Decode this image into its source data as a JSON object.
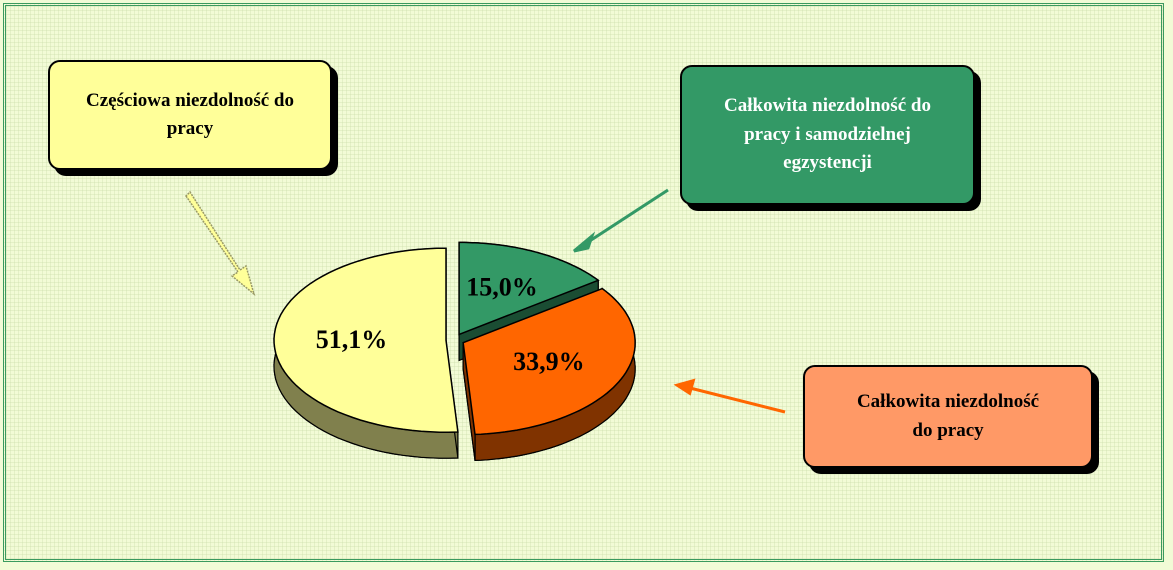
{
  "chart_data": {
    "type": "pie",
    "categories": [
      "Częściowa niezdolność do pracy",
      "Całkowita niezdolność do pracy i samodzielnej egzystencji",
      "Całkowita niezdolność do pracy"
    ],
    "values": [
      51.1,
      15.0,
      33.9
    ],
    "value_labels": [
      "51,1%",
      "15,0%",
      "33,9%"
    ],
    "colors": [
      "#ffff99",
      "#339966",
      "#ff6600"
    ]
  }
}
